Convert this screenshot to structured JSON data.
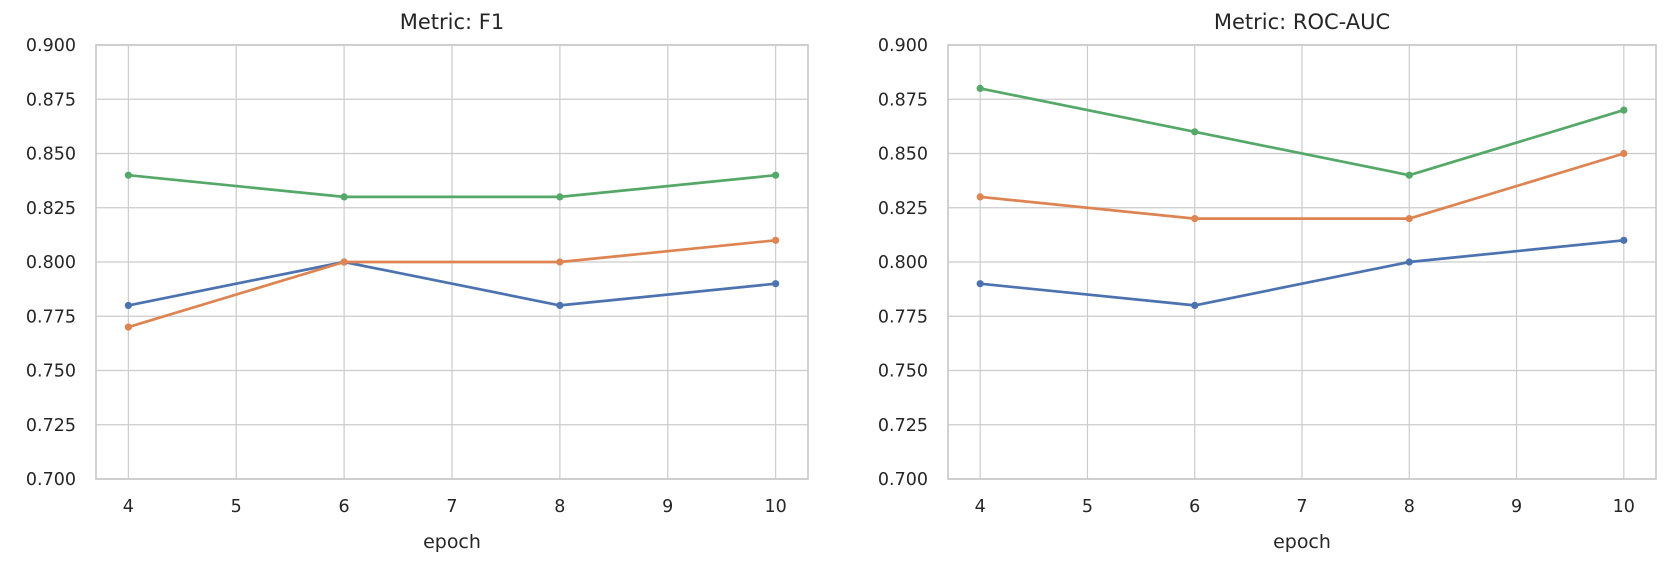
{
  "figure": {
    "background": "#ffffff",
    "text_color": "#262626",
    "grid_color": "#cccccc",
    "spine_color": "#c6c6c6"
  },
  "chart_data": [
    {
      "type": "line",
      "title": "Metric: F1",
      "xlabel": "epoch",
      "ylabel": "",
      "x": [
        4,
        6,
        8,
        10
      ],
      "xtick_labels": [
        "4",
        "5",
        "6",
        "7",
        "8",
        "9",
        "10"
      ],
      "ytick_labels": [
        "0.700",
        "0.725",
        "0.750",
        "0.775",
        "0.800",
        "0.825",
        "0.850",
        "0.875",
        "0.900"
      ],
      "xlim": [
        3.7,
        10.3
      ],
      "ylim": [
        0.7,
        0.9
      ],
      "grid": true,
      "legend": false,
      "marker": "circle",
      "series": [
        {
          "color": "#4c72b0",
          "values": [
            0.78,
            0.8,
            0.78,
            0.79
          ]
        },
        {
          "color": "#dd8452",
          "values": [
            0.77,
            0.8,
            0.8,
            0.81
          ]
        },
        {
          "color": "#55a868",
          "values": [
            0.84,
            0.83,
            0.83,
            0.84
          ]
        }
      ]
    },
    {
      "type": "line",
      "title": "Metric: ROC-AUC",
      "xlabel": "epoch",
      "ylabel": "",
      "x": [
        4,
        6,
        8,
        10
      ],
      "xtick_labels": [
        "4",
        "5",
        "6",
        "7",
        "8",
        "9",
        "10"
      ],
      "ytick_labels": [
        "0.700",
        "0.725",
        "0.750",
        "0.775",
        "0.800",
        "0.825",
        "0.850",
        "0.875",
        "0.900"
      ],
      "xlim": [
        3.7,
        10.3
      ],
      "ylim": [
        0.7,
        0.9
      ],
      "grid": true,
      "legend": false,
      "marker": "circle",
      "series": [
        {
          "color": "#4c72b0",
          "values": [
            0.79,
            0.78,
            0.8,
            0.81
          ]
        },
        {
          "color": "#dd8452",
          "values": [
            0.83,
            0.82,
            0.82,
            0.85
          ]
        },
        {
          "color": "#55a868",
          "values": [
            0.88,
            0.86,
            0.84,
            0.87
          ]
        }
      ]
    }
  ]
}
